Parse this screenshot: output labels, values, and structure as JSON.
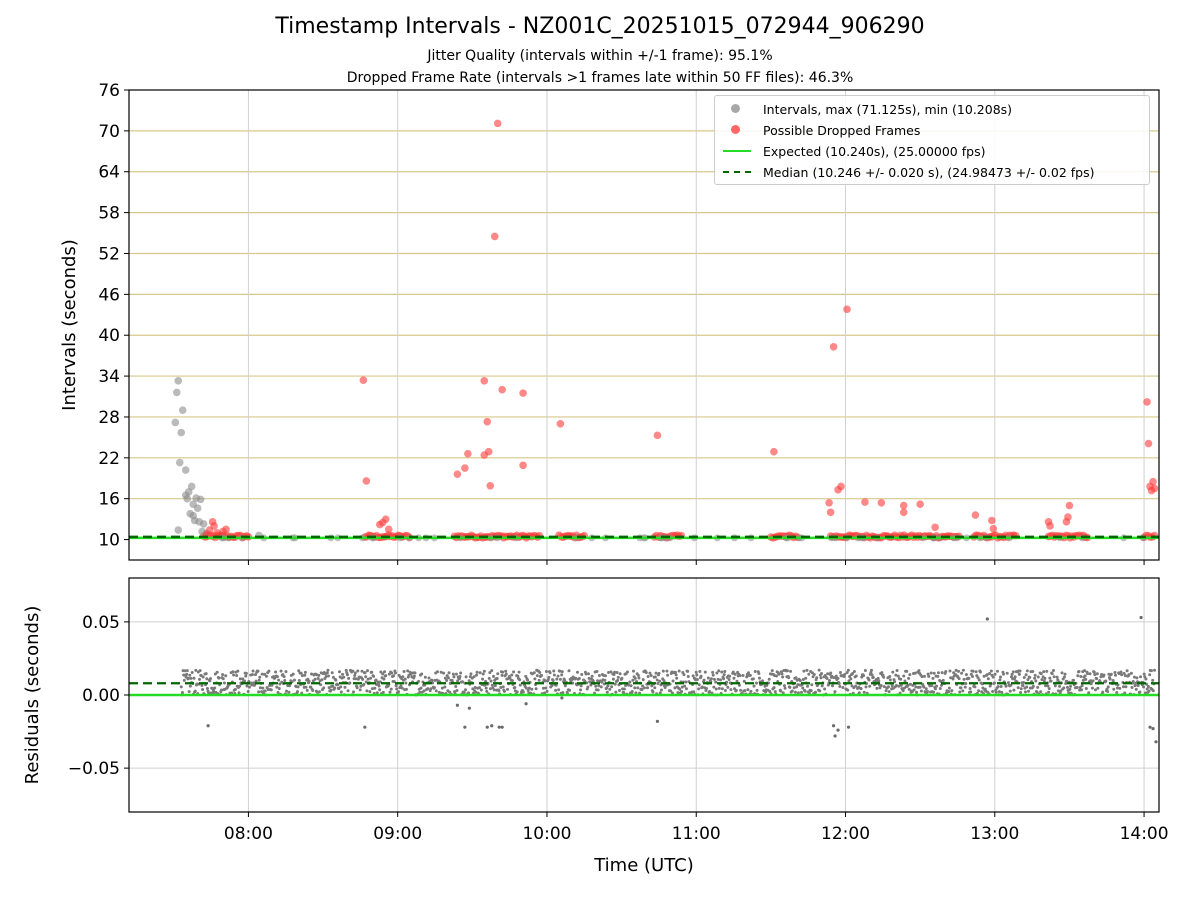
{
  "chart_data": [
    {
      "type": "scatter",
      "title": "Timestamp Intervals - NZ001C_20251015_072944_906290",
      "subtitle_1": "Jitter Quality (intervals within +/-1 frame): 95.1%",
      "subtitle_2": "Dropped Frame Rate (intervals >1 frames late within 50 FF files): 46.3%",
      "xlabel": "",
      "ylabel": "Intervals (seconds)",
      "xlim_hours": [
        7.2,
        14.1
      ],
      "ylim": [
        7,
        76
      ],
      "y_ticks": [
        10,
        16,
        22,
        28,
        34,
        40,
        46,
        52,
        58,
        64,
        70,
        76
      ],
      "grid_lines": [
        16,
        22,
        28,
        34,
        40,
        46,
        52,
        58,
        64,
        70
      ],
      "legend_position": "top-right",
      "legend": {
        "intervals": "Intervals, max (71.125s), min (10.208s)",
        "dropped": "Possible Dropped Frames",
        "expected": "Expected (10.240s), (25.00000 fps)",
        "median": "Median (10.246 +/- 0.020 s), (24.98473 +/- 0.02 fps)"
      },
      "colors": {
        "intervals": "#8c8c8c",
        "dropped": "#ff3b3b",
        "expected": "#22dd22",
        "median": "#006600",
        "grid": "#d8c88a"
      },
      "expected_value": 10.24,
      "median_value": 10.246,
      "series": [
        {
          "name": "Intervals",
          "points": [
            [
              7.51,
              27.2
            ],
            [
              7.52,
              31.6
            ],
            [
              7.53,
              33.3
            ],
            [
              7.54,
              21.3
            ],
            [
              7.55,
              25.7
            ],
            [
              7.56,
              29.0
            ],
            [
              7.58,
              20.2
            ],
            [
              7.58,
              16.5
            ],
            [
              7.59,
              16.0
            ],
            [
              7.6,
              17.0
            ],
            [
              7.61,
              13.8
            ],
            [
              7.62,
              17.8
            ],
            [
              7.63,
              13.5
            ],
            [
              7.63,
              15.2
            ],
            [
              7.64,
              12.8
            ],
            [
              7.65,
              16.1
            ],
            [
              7.66,
              14.6
            ],
            [
              7.67,
              12.6
            ],
            [
              7.68,
              15.9
            ],
            [
              7.69,
              11.2
            ],
            [
              7.7,
              12.3
            ],
            [
              7.72,
              10.9
            ],
            [
              7.53,
              11.4
            ],
            [
              8.07,
              10.6
            ]
          ]
        },
        {
          "name": "Possible Dropped Frames",
          "points": [
            [
              8.77,
              33.4
            ],
            [
              8.79,
              18.6
            ],
            [
              8.88,
              12.2
            ],
            [
              8.9,
              12.5
            ],
            [
              8.92,
              13.0
            ],
            [
              8.94,
              11.5
            ],
            [
              9.4,
              19.6
            ],
            [
              9.45,
              20.5
            ],
            [
              9.47,
              22.6
            ],
            [
              9.58,
              33.3
            ],
            [
              9.58,
              22.4
            ],
            [
              9.6,
              27.3
            ],
            [
              9.61,
              22.9
            ],
            [
              9.62,
              17.9
            ],
            [
              9.65,
              54.5
            ],
            [
              9.67,
              71.1
            ],
            [
              9.7,
              32.0
            ],
            [
              9.84,
              31.5
            ],
            [
              9.84,
              20.9
            ],
            [
              10.09,
              27.0
            ],
            [
              10.74,
              25.3
            ],
            [
              11.52,
              22.9
            ],
            [
              11.89,
              15.4
            ],
            [
              11.9,
              14.0
            ],
            [
              11.92,
              38.3
            ],
            [
              11.95,
              17.3
            ],
            [
              11.97,
              17.8
            ],
            [
              12.01,
              43.8
            ],
            [
              12.13,
              15.5
            ],
            [
              12.24,
              15.4
            ],
            [
              12.39,
              15.0
            ],
            [
              12.39,
              14.0
            ],
            [
              12.5,
              15.2
            ],
            [
              12.6,
              11.8
            ],
            [
              12.87,
              13.6
            ],
            [
              12.98,
              12.8
            ],
            [
              12.99,
              11.6
            ],
            [
              13.36,
              12.6
            ],
            [
              13.37,
              12.0
            ],
            [
              13.48,
              12.6
            ],
            [
              13.49,
              13.3
            ],
            [
              13.5,
              15.0
            ],
            [
              14.02,
              30.2
            ],
            [
              14.03,
              24.1
            ],
            [
              14.04,
              17.8
            ],
            [
              14.05,
              17.2
            ],
            [
              14.06,
              18.5
            ],
            [
              14.07,
              17.5
            ],
            [
              7.72,
              10.7
            ],
            [
              7.74,
              11.4
            ],
            [
              7.76,
              12.6
            ],
            [
              7.77,
              12.0
            ],
            [
              7.79,
              11.0
            ],
            [
              7.83,
              11.2
            ],
            [
              7.85,
              11.5
            ]
          ],
          "clusters": [
            [
              7.7,
              8.0
            ],
            [
              8.78,
              9.08
            ],
            [
              9.38,
              9.95
            ],
            [
              10.08,
              10.25
            ],
            [
              10.72,
              10.9
            ],
            [
              11.5,
              11.68
            ],
            [
              11.9,
              12.76
            ],
            [
              12.86,
              13.14
            ],
            [
              13.36,
              13.62
            ],
            [
              14.0,
              14.07
            ]
          ]
        },
        {
          "name": "Expected",
          "value": 10.24
        },
        {
          "name": "Median",
          "value": 10.246
        }
      ]
    },
    {
      "type": "scatter",
      "xlabel": "Time (UTC)",
      "ylabel": "Residuals (seconds)",
      "xlim_hours": [
        7.2,
        14.1
      ],
      "ylim": [
        -0.08,
        0.08
      ],
      "y_ticks": [
        0.05,
        0.0,
        -0.05
      ],
      "y_tick_labels": [
        "0.05",
        "0.00",
        "−0.05"
      ],
      "x_ticks": [
        8,
        9,
        10,
        11,
        12,
        13,
        14
      ],
      "x_tick_labels": [
        "08:00",
        "09:00",
        "10:00",
        "11:00",
        "12:00",
        "13:00",
        "14:00"
      ],
      "expected_residual": 0.0,
      "median_residual": 0.006,
      "band": {
        "start": 7.55,
        "end": 14.07,
        "min": 0.0,
        "max": 0.017
      },
      "outliers": [
        [
          7.73,
          -0.021
        ],
        [
          8.78,
          -0.022
        ],
        [
          9.4,
          -0.007
        ],
        [
          9.45,
          -0.022
        ],
        [
          9.48,
          -0.009
        ],
        [
          9.6,
          -0.022
        ],
        [
          9.63,
          -0.021
        ],
        [
          9.68,
          -0.022
        ],
        [
          9.7,
          -0.022
        ],
        [
          9.86,
          -0.006
        ],
        [
          10.1,
          -0.002
        ],
        [
          10.74,
          -0.018
        ],
        [
          11.92,
          -0.021
        ],
        [
          11.93,
          -0.028
        ],
        [
          11.95,
          -0.024
        ],
        [
          12.02,
          -0.022
        ],
        [
          12.95,
          0.052
        ],
        [
          13.98,
          0.053
        ],
        [
          14.04,
          -0.022
        ],
        [
          14.06,
          -0.023
        ],
        [
          14.08,
          -0.032
        ]
      ]
    }
  ]
}
